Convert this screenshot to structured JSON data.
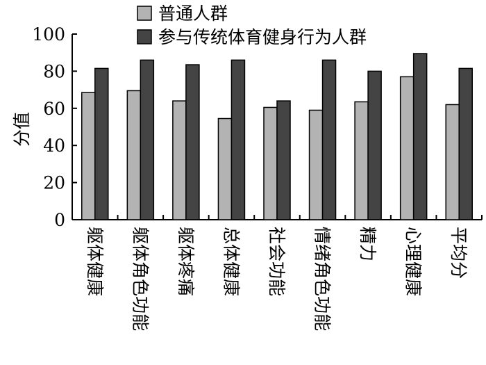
{
  "chart_data": {
    "type": "bar",
    "title": "",
    "xlabel": "",
    "ylabel": "分值",
    "ylim": [
      0,
      100
    ],
    "yticks": [
      0,
      20,
      40,
      60,
      80,
      100
    ],
    "grid": false,
    "legend_position": "top",
    "categories": [
      "躯体健康",
      "躯体角色功能",
      "躯体疼痛",
      "总体健康",
      "社会功能",
      "情绪角色功能",
      "精力",
      "心理健康",
      "平均分"
    ],
    "series": [
      {
        "name": "普通人群",
        "color": "#b3b3b3",
        "values": [
          68.5,
          69.5,
          64,
          54.5,
          60.5,
          59,
          63.5,
          77,
          62
        ]
      },
      {
        "name": "参与传统体育健身行为人群",
        "color": "#444444",
        "values": [
          81.5,
          86,
          83.5,
          86,
          64,
          86,
          80,
          89.5,
          81.5
        ]
      }
    ]
  }
}
